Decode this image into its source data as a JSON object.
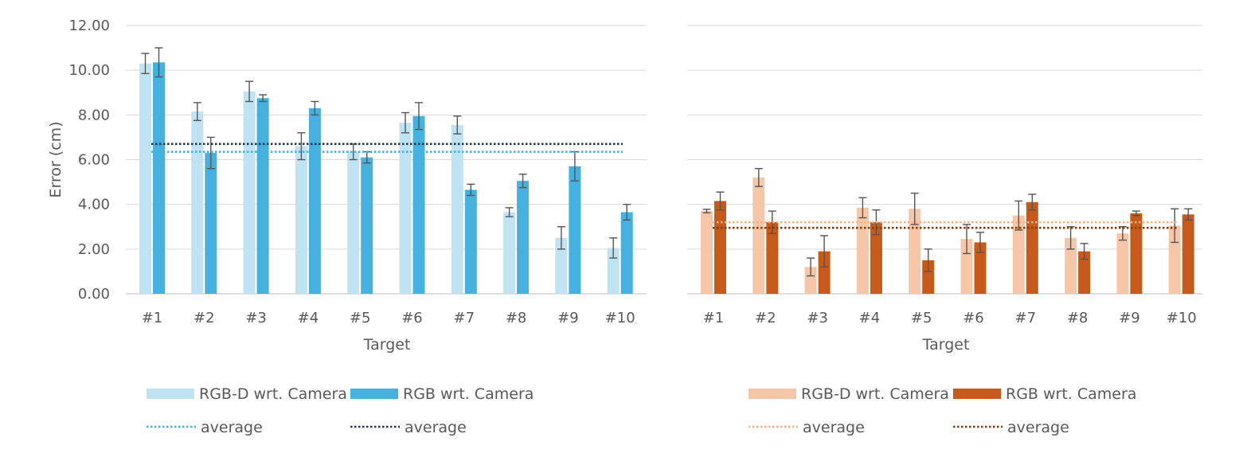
{
  "chart_data": [
    {
      "type": "bar",
      "title": "",
      "xlabel": "Target",
      "ylabel": "Error (cm)",
      "ylim": [
        0,
        12
      ],
      "yticks": [
        "0.00",
        "2.00",
        "4.00",
        "6.00",
        "8.00",
        "10.00",
        "12.00"
      ],
      "grid": true,
      "categories": [
        "#1",
        "#2",
        "#3",
        "#4",
        "#5",
        "#6",
        "#7",
        "#8",
        "#9",
        "#10"
      ],
      "series": [
        {
          "name": "RGB-D wrt. Camera",
          "color": "#bfe3f3",
          "values": [
            10.3,
            8.15,
            9.05,
            6.6,
            6.35,
            7.65,
            7.55,
            3.65,
            2.5,
            2.05
          ],
          "errors": [
            0.45,
            0.4,
            0.45,
            0.6,
            0.35,
            0.45,
            0.4,
            0.2,
            0.5,
            0.45
          ]
        },
        {
          "name": "RGB wrt. Camera",
          "color": "#46b0de",
          "values": [
            10.35,
            6.3,
            8.75,
            8.3,
            6.1,
            7.95,
            4.65,
            5.05,
            5.7,
            3.65
          ],
          "errors": [
            0.65,
            0.7,
            0.15,
            0.3,
            0.25,
            0.6,
            0.25,
            0.3,
            0.65,
            0.35
          ]
        }
      ],
      "averages": [
        {
          "name": "average",
          "value": 6.35,
          "color": "#46b0de"
        },
        {
          "name": "average",
          "value": 6.7,
          "color": "#1f3a4d"
        }
      ],
      "legend_position": "bottom"
    },
    {
      "type": "bar",
      "title": "",
      "xlabel": "Target",
      "ylabel": "",
      "ylim": [
        0,
        12
      ],
      "grid": true,
      "categories": [
        "#1",
        "#2",
        "#3",
        "#4",
        "#5",
        "#6",
        "#7",
        "#8",
        "#9",
        "#10"
      ],
      "series": [
        {
          "name": "RGB-D wrt. Camera",
          "color": "#f6c6a9",
          "values": [
            3.7,
            5.2,
            1.2,
            3.85,
            3.8,
            2.45,
            3.5,
            2.5,
            2.7,
            3.05
          ],
          "errors": [
            0.08,
            0.4,
            0.4,
            0.45,
            0.7,
            0.65,
            0.65,
            0.5,
            0.3,
            0.75
          ]
        },
        {
          "name": "RGB wrt. Camera",
          "color": "#c55a1a",
          "values": [
            4.15,
            3.2,
            1.9,
            3.2,
            1.5,
            2.3,
            4.1,
            1.9,
            3.6,
            3.55
          ],
          "errors": [
            0.4,
            0.5,
            0.7,
            0.55,
            0.5,
            0.45,
            0.35,
            0.35,
            0.1,
            0.25
          ]
        }
      ],
      "averages": [
        {
          "name": "average",
          "value": 3.2,
          "color": "#f4b183"
        },
        {
          "name": "average",
          "value": 2.95,
          "color": "#843c0c"
        }
      ],
      "legend_position": "bottom"
    }
  ]
}
